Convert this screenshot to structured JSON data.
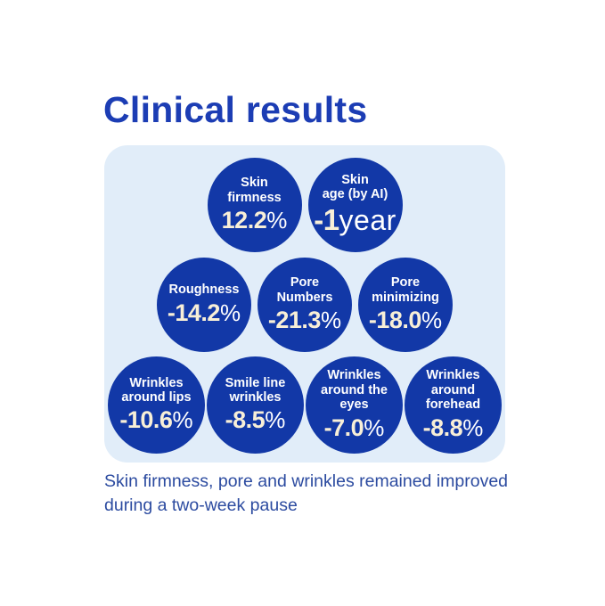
{
  "page": {
    "background_color": "#ffffff",
    "panel_color": "#e1edf9",
    "bubble_color": "#1238a7",
    "title_color": "#1c3db4",
    "caption_color": "#2c4ba0",
    "number_color": "#f8efd7",
    "unit_color": "#ffffff"
  },
  "chart_data": {
    "type": "bubble",
    "title": "Clinical results",
    "caption_lines": [
      "Skin firmness, pore and wrinkles remained improved",
      "during a two-week pause"
    ],
    "legend_position": "none",
    "layout": "bubble rows: 2 / 3 / 4",
    "metrics": [
      {
        "label": "Skin firmness",
        "label_lines": [
          "Skin",
          "firmness"
        ],
        "value": "12.2",
        "unit": "%",
        "row": 1
      },
      {
        "label": "Skin age (by AI)",
        "label_lines": [
          "Skin",
          "age (by AI)"
        ],
        "value": "-1",
        "unit": "year",
        "row": 1
      },
      {
        "label": "Roughness",
        "label_lines": [
          "Roughness"
        ],
        "value": "-14.2",
        "unit": "%",
        "row": 2
      },
      {
        "label": "Pore Numbers",
        "label_lines": [
          "Pore",
          "Numbers"
        ],
        "value": "-21.3",
        "unit": "%",
        "row": 2
      },
      {
        "label": "Pore minimizing",
        "label_lines": [
          "Pore",
          "minimizing"
        ],
        "value": "-18.0",
        "unit": "%",
        "row": 2
      },
      {
        "label": "Wrinkles around lips",
        "label_lines": [
          "Wrinkles",
          "around lips"
        ],
        "value": "-10.6",
        "unit": "%",
        "row": 3
      },
      {
        "label": "Smile line wrinkles",
        "label_lines": [
          "Smile line",
          "wrinkles"
        ],
        "value": "-8.5",
        "unit": "%",
        "row": 3
      },
      {
        "label": "Wrinkles around the eyes",
        "label_lines": [
          "Wrinkles",
          "around the",
          "eyes"
        ],
        "value": "-7.0",
        "unit": "%",
        "row": 3
      },
      {
        "label": "Wrinkles around forehead",
        "label_lines": [
          "Wrinkles",
          "around",
          "forehead"
        ],
        "value": "-8.8",
        "unit": "%",
        "row": 3
      }
    ]
  }
}
